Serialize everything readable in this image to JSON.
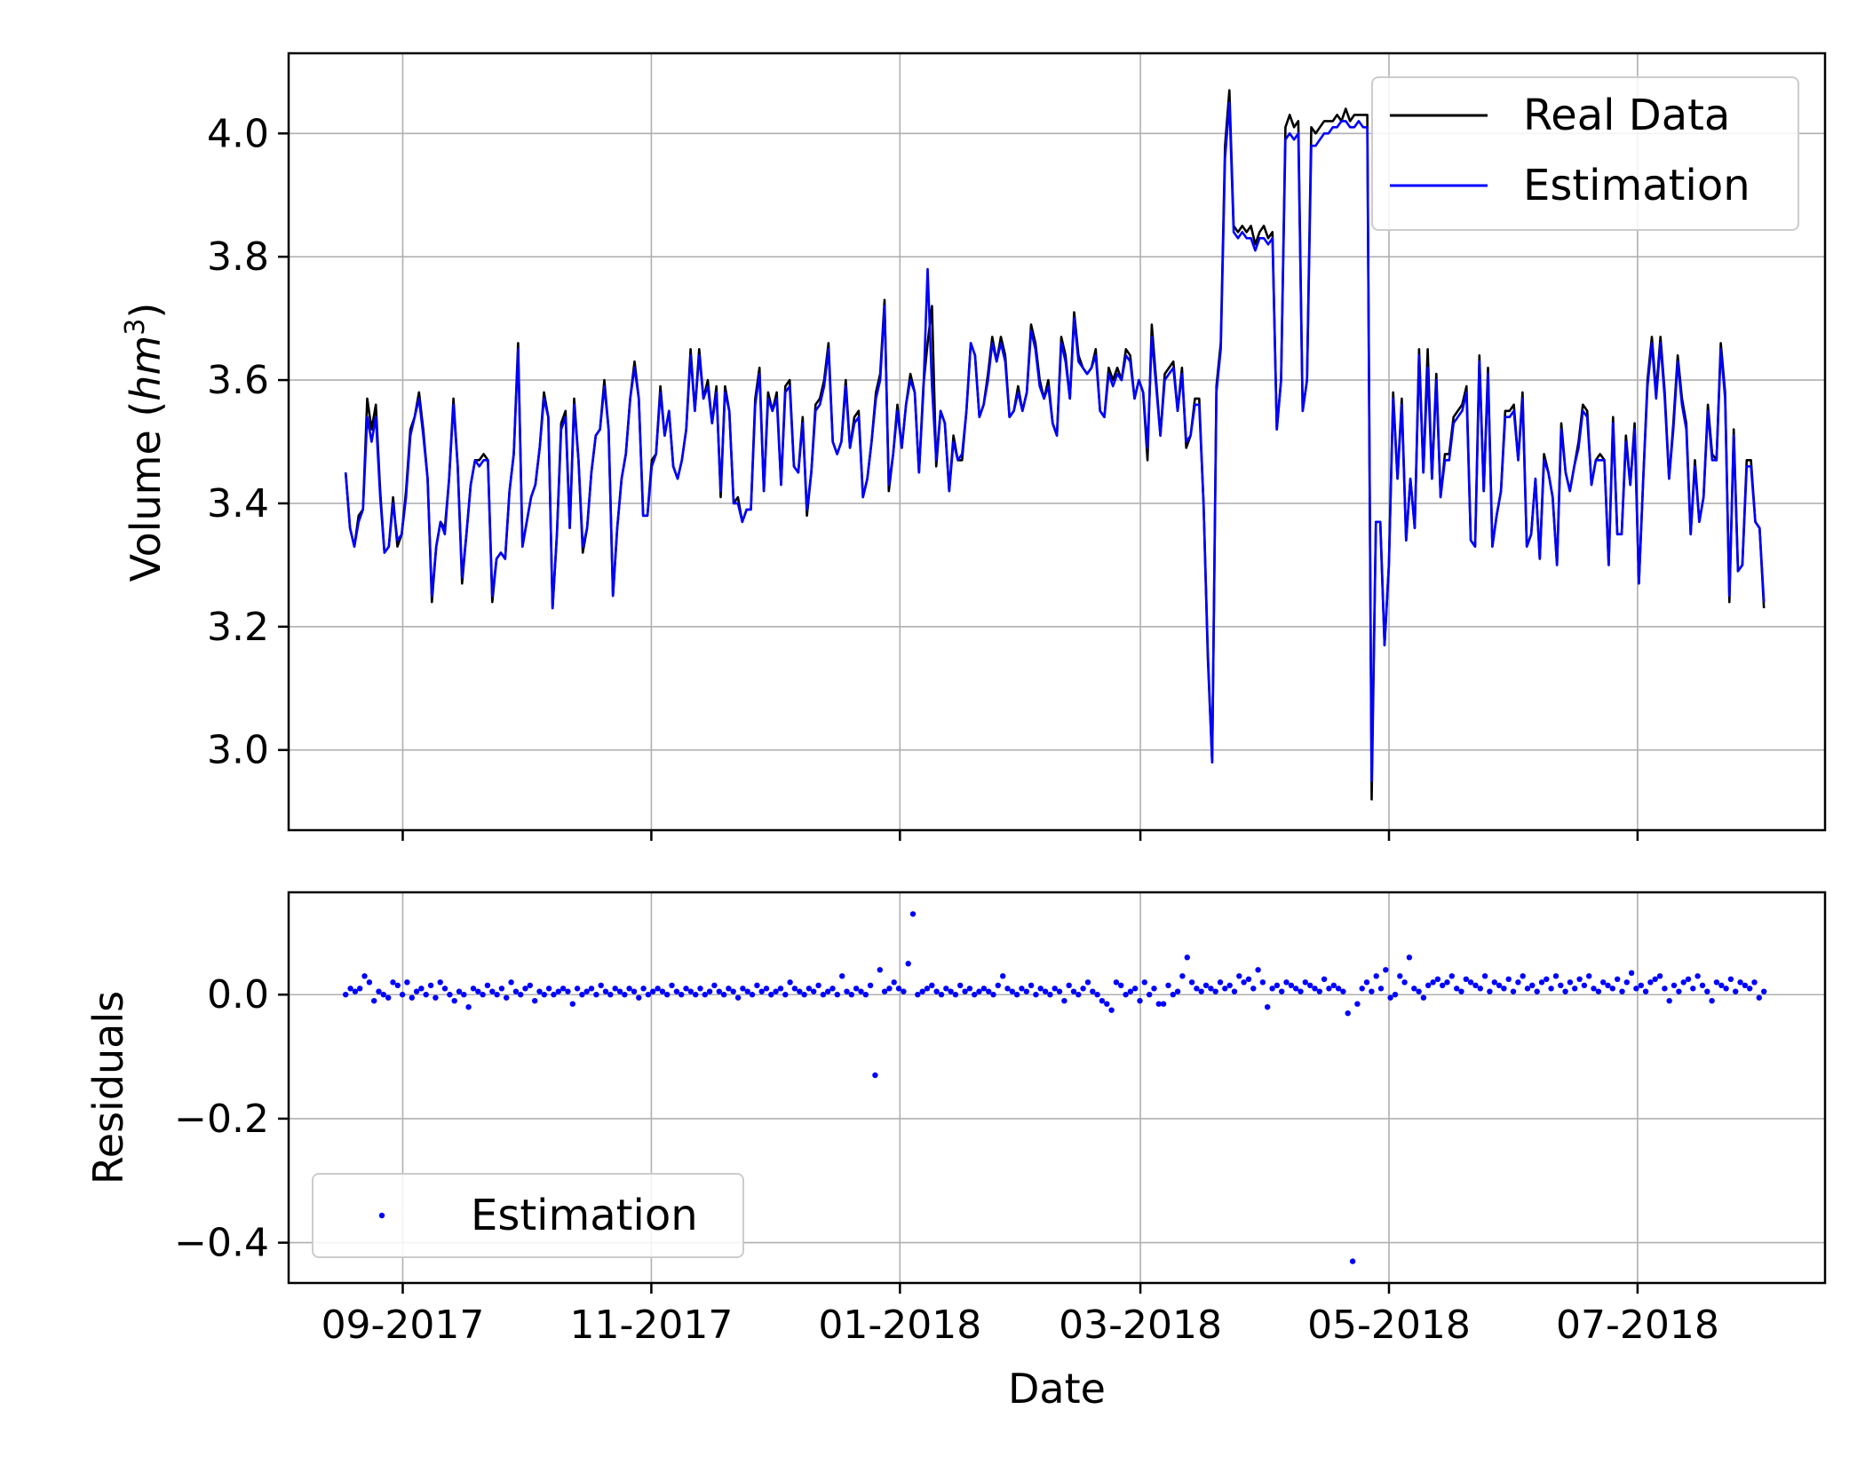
{
  "chart_data": [
    {
      "type": "line",
      "ylabel_text": "Volume (",
      "ylabel_var": "hm",
      "ylabel_exp": "3",
      "ylabel_close": ")",
      "xlabel": "",
      "ylim": [
        2.87,
        4.13
      ],
      "y_ticks": [
        "3.0",
        "3.2",
        "3.4",
        "3.6",
        "3.8",
        "4.0"
      ],
      "grid": true,
      "legend_position": "top-right",
      "series": [
        {
          "name": "Real Data",
          "color": "#000000",
          "start": "2017-08-18",
          "end": "2018-08-01",
          "values": [
            3.45,
            3.36,
            3.33,
            3.38,
            3.39,
            3.57,
            3.52,
            3.56,
            3.42,
            3.32,
            3.33,
            3.41,
            3.33,
            3.35,
            3.42,
            3.52,
            3.54,
            3.58,
            3.52,
            3.44,
            3.24,
            3.33,
            3.37,
            3.36,
            3.44,
            3.57,
            3.46,
            3.27,
            3.35,
            3.43,
            3.47,
            3.47,
            3.48,
            3.47,
            3.24,
            3.31,
            3.32,
            3.31,
            3.42,
            3.48,
            3.66,
            3.33,
            3.37,
            3.41,
            3.43,
            3.49,
            3.58,
            3.54,
            3.23,
            3.35,
            3.53,
            3.55,
            3.36,
            3.57,
            3.47,
            3.32,
            3.36,
            3.45,
            3.51,
            3.52,
            3.6,
            3.52,
            3.25,
            3.36,
            3.44,
            3.48,
            3.57,
            3.63,
            3.57,
            3.38,
            3.38,
            3.47,
            3.48,
            3.59,
            3.51,
            3.55,
            3.46,
            3.44,
            3.47,
            3.52,
            3.65,
            3.55,
            3.65,
            3.57,
            3.6,
            3.53,
            3.59,
            3.41,
            3.59,
            3.55,
            3.4,
            3.41,
            3.37,
            3.39,
            3.39,
            3.57,
            3.62,
            3.42,
            3.58,
            3.55,
            3.58,
            3.43,
            3.59,
            3.6,
            3.46,
            3.45,
            3.54,
            3.38,
            3.45,
            3.56,
            3.57,
            3.6,
            3.66,
            3.5,
            3.48,
            3.5,
            3.6,
            3.49,
            3.54,
            3.55,
            3.41,
            3.44,
            3.5,
            3.58,
            3.61,
            3.73,
            3.42,
            3.48,
            3.56,
            3.49,
            3.56,
            3.61,
            3.58,
            3.45,
            3.59,
            3.66,
            3.72,
            3.46,
            3.55,
            3.53,
            3.42,
            3.51,
            3.47,
            3.47,
            3.55,
            3.66,
            3.64,
            3.54,
            3.56,
            3.61,
            3.67,
            3.63,
            3.67,
            3.64,
            3.54,
            3.55,
            3.59,
            3.55,
            3.58,
            3.69,
            3.66,
            3.6,
            3.57,
            3.6,
            3.53,
            3.51,
            3.67,
            3.64,
            3.57,
            3.71,
            3.64,
            3.62,
            3.61,
            3.62,
            3.65,
            3.55,
            3.54,
            3.62,
            3.6,
            3.62,
            3.6,
            3.65,
            3.64,
            3.57,
            3.6,
            3.58,
            3.47,
            3.69,
            3.6,
            3.51,
            3.61,
            3.62,
            3.63,
            3.55,
            3.62,
            3.49,
            3.51,
            3.57,
            3.57,
            3.4,
            3.15,
            2.98,
            3.59,
            3.66,
            3.98,
            4.07,
            3.85,
            3.84,
            3.85,
            3.84,
            3.85,
            3.82,
            3.84,
            3.85,
            3.83,
            3.84,
            3.52,
            3.6,
            4.01,
            4.03,
            4.01,
            4.02,
            3.55,
            3.6,
            4.01,
            4.0,
            4.01,
            4.02,
            4.02,
            4.02,
            4.03,
            4.02,
            4.04,
            4.02,
            4.03,
            4.03,
            4.03,
            4.03,
            2.92,
            3.37,
            3.37,
            3.17,
            3.3,
            3.58,
            3.44,
            3.57,
            3.34,
            3.44,
            3.36,
            3.65,
            3.45,
            3.65,
            3.44,
            3.61,
            3.41,
            3.48,
            3.48,
            3.54,
            3.55,
            3.56,
            3.59,
            3.34,
            3.33,
            3.64,
            3.42,
            3.62,
            3.33,
            3.38,
            3.42,
            3.55,
            3.55,
            3.56,
            3.47,
            3.58,
            3.33,
            3.35,
            3.44,
            3.31,
            3.48,
            3.45,
            3.41,
            3.3,
            3.53,
            3.45,
            3.42,
            3.46,
            3.5,
            3.56,
            3.55,
            3.43,
            3.47,
            3.48,
            3.47,
            3.3,
            3.54,
            3.35,
            3.35,
            3.51,
            3.43,
            3.53,
            3.27,
            3.44,
            3.6,
            3.67,
            3.58,
            3.67,
            3.58,
            3.44,
            3.53,
            3.64,
            3.57,
            3.53,
            3.35,
            3.47,
            3.37,
            3.41,
            3.56,
            3.48,
            3.47,
            3.66,
            3.58,
            3.24,
            3.52,
            3.29,
            3.3,
            3.47,
            3.47,
            3.37,
            3.36,
            3.23
          ]
        },
        {
          "name": "Estimation",
          "color": "#0000ff",
          "start": "2017-08-18",
          "end": "2018-08-01",
          "values": [
            3.45,
            3.36,
            3.33,
            3.37,
            3.39,
            3.54,
            3.5,
            3.54,
            3.41,
            3.32,
            3.33,
            3.4,
            3.34,
            3.35,
            3.41,
            3.51,
            3.54,
            3.57,
            3.51,
            3.44,
            3.25,
            3.33,
            3.37,
            3.35,
            3.44,
            3.56,
            3.46,
            3.28,
            3.35,
            3.43,
            3.47,
            3.46,
            3.47,
            3.47,
            3.25,
            3.31,
            3.32,
            3.31,
            3.42,
            3.48,
            3.65,
            3.33,
            3.37,
            3.41,
            3.43,
            3.49,
            3.57,
            3.54,
            3.23,
            3.35,
            3.52,
            3.54,
            3.36,
            3.56,
            3.47,
            3.33,
            3.36,
            3.45,
            3.51,
            3.52,
            3.59,
            3.52,
            3.25,
            3.36,
            3.44,
            3.48,
            3.57,
            3.62,
            3.57,
            3.38,
            3.38,
            3.46,
            3.48,
            3.58,
            3.51,
            3.55,
            3.46,
            3.44,
            3.47,
            3.52,
            3.64,
            3.55,
            3.64,
            3.57,
            3.59,
            3.53,
            3.58,
            3.42,
            3.58,
            3.55,
            3.4,
            3.4,
            3.37,
            3.39,
            3.39,
            3.56,
            3.61,
            3.42,
            3.57,
            3.55,
            3.57,
            3.43,
            3.58,
            3.59,
            3.46,
            3.45,
            3.53,
            3.39,
            3.45,
            3.55,
            3.56,
            3.59,
            3.65,
            3.5,
            3.48,
            3.5,
            3.59,
            3.49,
            3.53,
            3.54,
            3.41,
            3.44,
            3.5,
            3.57,
            3.6,
            3.72,
            3.43,
            3.48,
            3.55,
            3.49,
            3.56,
            3.6,
            3.58,
            3.45,
            3.58,
            3.78,
            3.59,
            3.47,
            3.55,
            3.53,
            3.42,
            3.5,
            3.47,
            3.48,
            3.55,
            3.66,
            3.64,
            3.54,
            3.56,
            3.6,
            3.66,
            3.63,
            3.66,
            3.63,
            3.54,
            3.55,
            3.58,
            3.55,
            3.58,
            3.68,
            3.65,
            3.59,
            3.57,
            3.59,
            3.53,
            3.51,
            3.66,
            3.63,
            3.57,
            3.7,
            3.63,
            3.62,
            3.61,
            3.62,
            3.64,
            3.55,
            3.54,
            3.61,
            3.59,
            3.61,
            3.6,
            3.64,
            3.63,
            3.57,
            3.6,
            3.58,
            3.49,
            3.67,
            3.59,
            3.51,
            3.6,
            3.61,
            3.62,
            3.55,
            3.61,
            3.5,
            3.51,
            3.56,
            3.56,
            3.4,
            3.16,
            2.98,
            3.58,
            3.65,
            3.96,
            4.05,
            3.84,
            3.83,
            3.84,
            3.83,
            3.83,
            3.81,
            3.83,
            3.83,
            3.82,
            3.83,
            3.52,
            3.6,
            3.99,
            4.0,
            3.99,
            4.0,
            3.55,
            3.6,
            3.98,
            3.98,
            3.99,
            4.0,
            4.0,
            4.01,
            4.01,
            4.02,
            4.02,
            4.01,
            4.01,
            4.02,
            4.01,
            4.01,
            2.95,
            3.37,
            3.37,
            3.17,
            3.3,
            3.57,
            3.44,
            3.56,
            3.34,
            3.44,
            3.36,
            3.64,
            3.45,
            3.62,
            3.44,
            3.6,
            3.41,
            3.47,
            3.47,
            3.53,
            3.54,
            3.55,
            3.58,
            3.34,
            3.33,
            3.63,
            3.42,
            3.61,
            3.33,
            3.38,
            3.42,
            3.54,
            3.54,
            3.55,
            3.47,
            3.57,
            3.33,
            3.35,
            3.44,
            3.31,
            3.47,
            3.45,
            3.41,
            3.3,
            3.52,
            3.45,
            3.42,
            3.46,
            3.49,
            3.55,
            3.54,
            3.43,
            3.47,
            3.47,
            3.47,
            3.3,
            3.53,
            3.35,
            3.35,
            3.5,
            3.43,
            3.52,
            3.27,
            3.44,
            3.59,
            3.66,
            3.57,
            3.66,
            3.57,
            3.44,
            3.52,
            3.63,
            3.56,
            3.52,
            3.35,
            3.46,
            3.37,
            3.41,
            3.55,
            3.47,
            3.47,
            3.65,
            3.57,
            3.25,
            3.51,
            3.29,
            3.3,
            3.46,
            3.46,
            3.37,
            3.36,
            3.24
          ]
        }
      ]
    },
    {
      "type": "scatter",
      "ylabel": "Residuals",
      "xlabel": "Date",
      "ylim": [
        -0.465,
        0.165
      ],
      "y_ticks": [
        "0.0",
        "−0.2",
        "−0.4"
      ],
      "x_ticks": [
        "09-2017",
        "11-2017",
        "01-2018",
        "03-2018",
        "05-2018",
        "07-2018"
      ],
      "grid": true,
      "legend_position": "bottom-left",
      "series": [
        {
          "name": "Estimation",
          "color": "#0000ff",
          "start": "2017-08-18",
          "end": "2018-08-01",
          "values": [
            0.0,
            0.01,
            0.005,
            0.01,
            0.03,
            0.02,
            -0.01,
            0.005,
            0.0,
            -0.005,
            0.02,
            0.015,
            0.0,
            0.02,
            -0.005,
            0.005,
            0.01,
            0.0,
            0.015,
            -0.005,
            0.02,
            0.01,
            0.0,
            -0.01,
            0.005,
            0.0,
            -0.02,
            0.01,
            0.005,
            0.0,
            0.015,
            0.005,
            0.0,
            0.01,
            -0.005,
            0.02,
            0.005,
            0.0,
            0.01,
            0.015,
            -0.01,
            0.005,
            0.0,
            0.01,
            0.0,
            0.005,
            0.01,
            0.005,
            -0.015,
            0.01,
            0.0,
            0.005,
            0.01,
            0.0,
            0.015,
            0.005,
            0.0,
            0.01,
            0.005,
            0.0,
            0.01,
            0.005,
            -0.005,
            0.01,
            0.0,
            0.005,
            0.01,
            0.005,
            0.0,
            0.015,
            0.005,
            0.0,
            0.01,
            0.005,
            0.0,
            0.01,
            0.0,
            0.005,
            0.015,
            0.005,
            0.0,
            0.01,
            0.005,
            -0.005,
            0.01,
            0.005,
            0.0,
            0.015,
            0.005,
            0.01,
            0.0,
            0.005,
            0.01,
            0.0,
            0.02,
            0.01,
            0.005,
            0.0,
            0.01,
            0.005,
            0.015,
            0.0,
            0.005,
            0.01,
            0.0,
            0.03,
            0.005,
            0.0,
            0.01,
            0.005,
            0.0,
            0.015,
            -0.13,
            0.04,
            0.005,
            0.01,
            0.02,
            0.01,
            0.005,
            0.05,
            0.13,
            0.0,
            0.005,
            0.01,
            0.015,
            0.005,
            0.0,
            0.01,
            0.005,
            0.0,
            0.015,
            0.005,
            0.01,
            0.0,
            0.005,
            0.01,
            0.005,
            0.0,
            0.015,
            0.03,
            0.01,
            0.005,
            0.0,
            0.01,
            0.005,
            0.015,
            0.0,
            0.01,
            0.005,
            0.0,
            0.01,
            0.005,
            -0.01,
            0.015,
            0.005,
            0.0,
            0.01,
            0.02,
            0.005,
            0.0,
            -0.01,
            -0.015,
            -0.025,
            0.02,
            0.015,
            0.0,
            0.005,
            0.01,
            -0.01,
            0.02,
            0.0,
            0.01,
            -0.015,
            -0.015,
            0.015,
            0.0,
            0.005,
            0.03,
            0.06,
            0.02,
            0.01,
            0.005,
            0.015,
            0.01,
            0.005,
            0.02,
            0.01,
            0.015,
            0.005,
            0.03,
            0.02,
            0.025,
            0.01,
            0.04,
            0.02,
            -0.02,
            0.01,
            0.015,
            0.005,
            0.02,
            0.015,
            0.01,
            0.005,
            0.02,
            0.015,
            0.01,
            0.005,
            0.025,
            0.01,
            0.015,
            0.01,
            0.005,
            -0.03,
            -0.43,
            -0.015,
            0.01,
            0.02,
            0.005,
            0.03,
            0.01,
            0.04,
            -0.005,
            0.0,
            0.03,
            0.02,
            0.06,
            0.01,
            0.005,
            -0.005,
            0.015,
            0.02,
            0.025,
            0.015,
            0.02,
            0.03,
            0.01,
            0.005,
            0.025,
            0.02,
            0.015,
            0.01,
            0.03,
            0.005,
            0.02,
            0.015,
            0.01,
            0.025,
            0.005,
            0.02,
            0.03,
            0.01,
            0.015,
            0.005,
            0.02,
            0.025,
            0.01,
            0.03,
            0.015,
            0.005,
            0.02,
            0.01,
            0.025,
            0.015,
            0.03,
            0.01,
            0.005,
            0.02,
            0.015,
            0.01,
            0.025,
            0.005,
            0.02,
            0.035,
            0.01,
            0.015,
            0.005,
            0.02,
            0.025,
            0.03,
            0.01,
            -0.01,
            0.015,
            0.005,
            0.02,
            0.025,
            0.01,
            0.03,
            0.015,
            0.005,
            -0.01,
            0.02,
            0.015,
            0.01,
            0.025,
            0.005,
            0.02,
            0.015,
            0.01,
            0.02,
            -0.005,
            0.005
          ]
        }
      ]
    }
  ]
}
